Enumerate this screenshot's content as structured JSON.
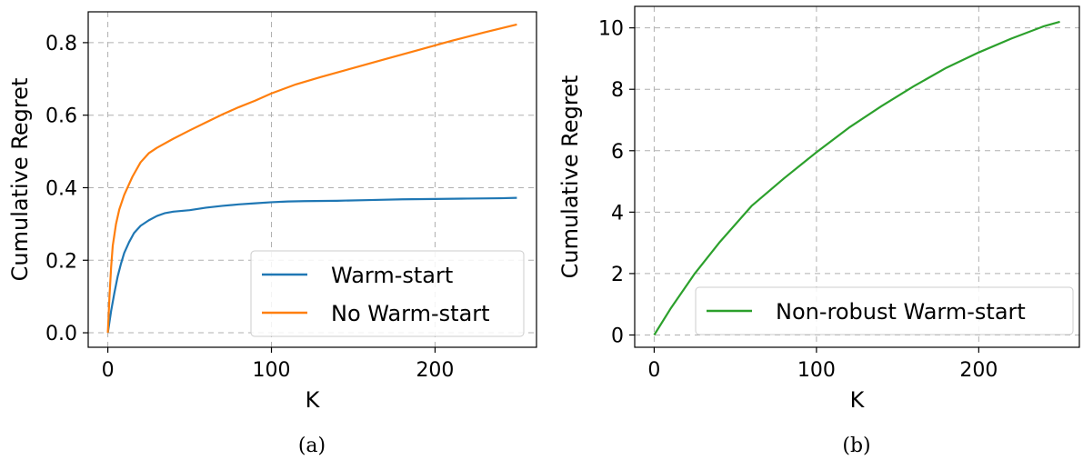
{
  "chart_data": [
    {
      "type": "line",
      "caption": "(a)",
      "xlabel": "K",
      "ylabel": "Cumulative Regret",
      "xlim": [
        -12,
        262
      ],
      "ylim": [
        -0.04,
        0.885
      ],
      "xticks": [
        0,
        100,
        200
      ],
      "xtick_labels": [
        "0",
        "100",
        "200"
      ],
      "yticks": [
        0.0,
        0.2,
        0.4,
        0.6,
        0.8
      ],
      "ytick_labels": [
        "0.0",
        "0.2",
        "0.4",
        "0.6",
        "0.8"
      ],
      "grid": true,
      "legend_position": "lower-right",
      "series": [
        {
          "name": "Warm-start",
          "color": "#1f77b4",
          "x": [
            0,
            2,
            4,
            6,
            8,
            10,
            13,
            16,
            20,
            25,
            30,
            35,
            40,
            50,
            60,
            70,
            80,
            90,
            100,
            110,
            120,
            140,
            160,
            180,
            200,
            220,
            240,
            250
          ],
          "y": [
            0.0,
            0.06,
            0.11,
            0.155,
            0.19,
            0.22,
            0.25,
            0.275,
            0.295,
            0.31,
            0.322,
            0.33,
            0.334,
            0.338,
            0.345,
            0.35,
            0.354,
            0.357,
            0.36,
            0.362,
            0.363,
            0.364,
            0.366,
            0.368,
            0.369,
            0.37,
            0.371,
            0.372
          ]
        },
        {
          "name": "No Warm-start",
          "color": "#ff7f0e",
          "x": [
            0,
            1,
            2,
            3,
            5,
            7,
            10,
            15,
            20,
            25,
            30,
            40,
            50,
            60,
            70,
            80,
            90,
            100,
            115,
            130,
            150,
            170,
            190,
            210,
            230,
            250
          ],
          "y": [
            0.0,
            0.1,
            0.18,
            0.24,
            0.3,
            0.34,
            0.38,
            0.43,
            0.47,
            0.495,
            0.51,
            0.535,
            0.558,
            0.58,
            0.602,
            0.622,
            0.64,
            0.66,
            0.685,
            0.705,
            0.73,
            0.755,
            0.78,
            0.805,
            0.828,
            0.85
          ]
        }
      ]
    },
    {
      "type": "line",
      "caption": "(b)",
      "xlabel": "K",
      "ylabel": "Cumulative Regret",
      "xlim": [
        -12,
        262
      ],
      "ylim": [
        -0.4,
        10.7
      ],
      "xticks": [
        0,
        100,
        200
      ],
      "xtick_labels": [
        "0",
        "100",
        "200"
      ],
      "yticks": [
        0,
        2,
        4,
        6,
        8,
        10
      ],
      "ytick_labels": [
        "0",
        "2",
        "4",
        "6",
        "8",
        "10"
      ],
      "grid": true,
      "legend_position": "lower-right",
      "series": [
        {
          "name": "Non-robust Warm-start",
          "color": "#2ca02c",
          "x": [
            0,
            10,
            25,
            40,
            60,
            80,
            100,
            120,
            140,
            160,
            180,
            200,
            220,
            240,
            250
          ],
          "y": [
            0.0,
            0.85,
            2.0,
            3.0,
            4.2,
            5.1,
            5.95,
            6.75,
            7.45,
            8.1,
            8.7,
            9.2,
            9.65,
            10.05,
            10.2
          ]
        }
      ]
    }
  ]
}
